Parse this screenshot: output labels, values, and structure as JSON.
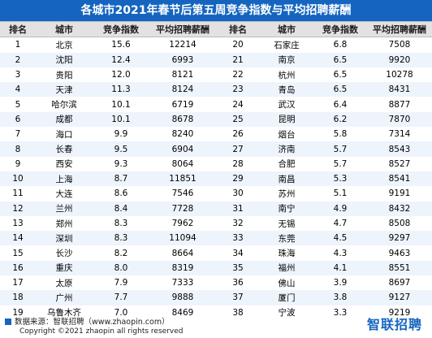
{
  "title": "各城市2021年春节后第五周竞争指数与平均招聘薪酬",
  "headers": [
    "排名",
    "城市",
    "竞争指数",
    "平均招聘薪酬",
    "排名",
    "城市",
    "竞争指数",
    "平均招聘薪酬"
  ],
  "footer": {
    "source": "数据来源：智联招聘（www.zhaopin.com）",
    "copyright": "Copyright ©2021 zhaopin all rights reserved",
    "logo": "智联招聘"
  },
  "colors": {
    "header_bar": "#1565c0",
    "alt_row": "#eef4fc",
    "column_header": "#e2e2e2"
  },
  "chart_data": {
    "type": "table",
    "title": "各城市2021年春节后第五周竞争指数与平均招聘薪酬",
    "columns": [
      "排名",
      "城市",
      "竞争指数",
      "平均招聘薪酬"
    ],
    "rows": [
      {
        "rank": "1",
        "city": "北京",
        "index": "15.6",
        "salary": "12214"
      },
      {
        "rank": "2",
        "city": "沈阳",
        "index": "12.4",
        "salary": "6993"
      },
      {
        "rank": "3",
        "city": "贵阳",
        "index": "12.0",
        "salary": "8121"
      },
      {
        "rank": "4",
        "city": "天津",
        "index": "11.3",
        "salary": "8124"
      },
      {
        "rank": "5",
        "city": "哈尔滨",
        "index": "10.1",
        "salary": "6719"
      },
      {
        "rank": "6",
        "city": "成都",
        "index": "10.1",
        "salary": "8678"
      },
      {
        "rank": "7",
        "city": "海口",
        "index": "9.9",
        "salary": "8240"
      },
      {
        "rank": "8",
        "city": "长春",
        "index": "9.5",
        "salary": "6904"
      },
      {
        "rank": "9",
        "city": "西安",
        "index": "9.3",
        "salary": "8064"
      },
      {
        "rank": "10",
        "city": "上海",
        "index": "8.7",
        "salary": "11851"
      },
      {
        "rank": "11",
        "city": "大连",
        "index": "8.6",
        "salary": "7546"
      },
      {
        "rank": "12",
        "city": "兰州",
        "index": "8.4",
        "salary": "7728"
      },
      {
        "rank": "13",
        "city": "郑州",
        "index": "8.3",
        "salary": "7962"
      },
      {
        "rank": "14",
        "city": "深圳",
        "index": "8.3",
        "salary": "11094"
      },
      {
        "rank": "15",
        "city": "长沙",
        "index": "8.2",
        "salary": "8664"
      },
      {
        "rank": "16",
        "city": "重庆",
        "index": "8.0",
        "salary": "8319"
      },
      {
        "rank": "17",
        "city": "太原",
        "index": "7.9",
        "salary": "7333"
      },
      {
        "rank": "18",
        "city": "广州",
        "index": "7.7",
        "salary": "9888"
      },
      {
        "rank": "19",
        "city": "乌鲁木齐",
        "index": "7.0",
        "salary": "8469"
      },
      {
        "rank": "20",
        "city": "石家庄",
        "index": "6.8",
        "salary": "7508"
      },
      {
        "rank": "21",
        "city": "南京",
        "index": "6.5",
        "salary": "9920"
      },
      {
        "rank": "22",
        "city": "杭州",
        "index": "6.5",
        "salary": "10278"
      },
      {
        "rank": "23",
        "city": "青岛",
        "index": "6.5",
        "salary": "8431"
      },
      {
        "rank": "24",
        "city": "武汉",
        "index": "6.4",
        "salary": "8877"
      },
      {
        "rank": "25",
        "city": "昆明",
        "index": "6.2",
        "salary": "7870"
      },
      {
        "rank": "26",
        "city": "烟台",
        "index": "5.8",
        "salary": "7314"
      },
      {
        "rank": "27",
        "city": "济南",
        "index": "5.7",
        "salary": "8543"
      },
      {
        "rank": "28",
        "city": "合肥",
        "index": "5.7",
        "salary": "8527"
      },
      {
        "rank": "29",
        "city": "南昌",
        "index": "5.3",
        "salary": "8541"
      },
      {
        "rank": "30",
        "city": "苏州",
        "index": "5.1",
        "salary": "9191"
      },
      {
        "rank": "31",
        "city": "南宁",
        "index": "4.9",
        "salary": "8432"
      },
      {
        "rank": "32",
        "city": "无锡",
        "index": "4.7",
        "salary": "8508"
      },
      {
        "rank": "33",
        "city": "东莞",
        "index": "4.5",
        "salary": "9297"
      },
      {
        "rank": "34",
        "city": "珠海",
        "index": "4.3",
        "salary": "9463"
      },
      {
        "rank": "35",
        "city": "福州",
        "index": "4.1",
        "salary": "8551"
      },
      {
        "rank": "36",
        "city": "佛山",
        "index": "3.9",
        "salary": "8697"
      },
      {
        "rank": "37",
        "city": "厦门",
        "index": "3.8",
        "salary": "9127"
      },
      {
        "rank": "38",
        "city": "宁波",
        "index": "3.3",
        "salary": "9219"
      }
    ]
  }
}
